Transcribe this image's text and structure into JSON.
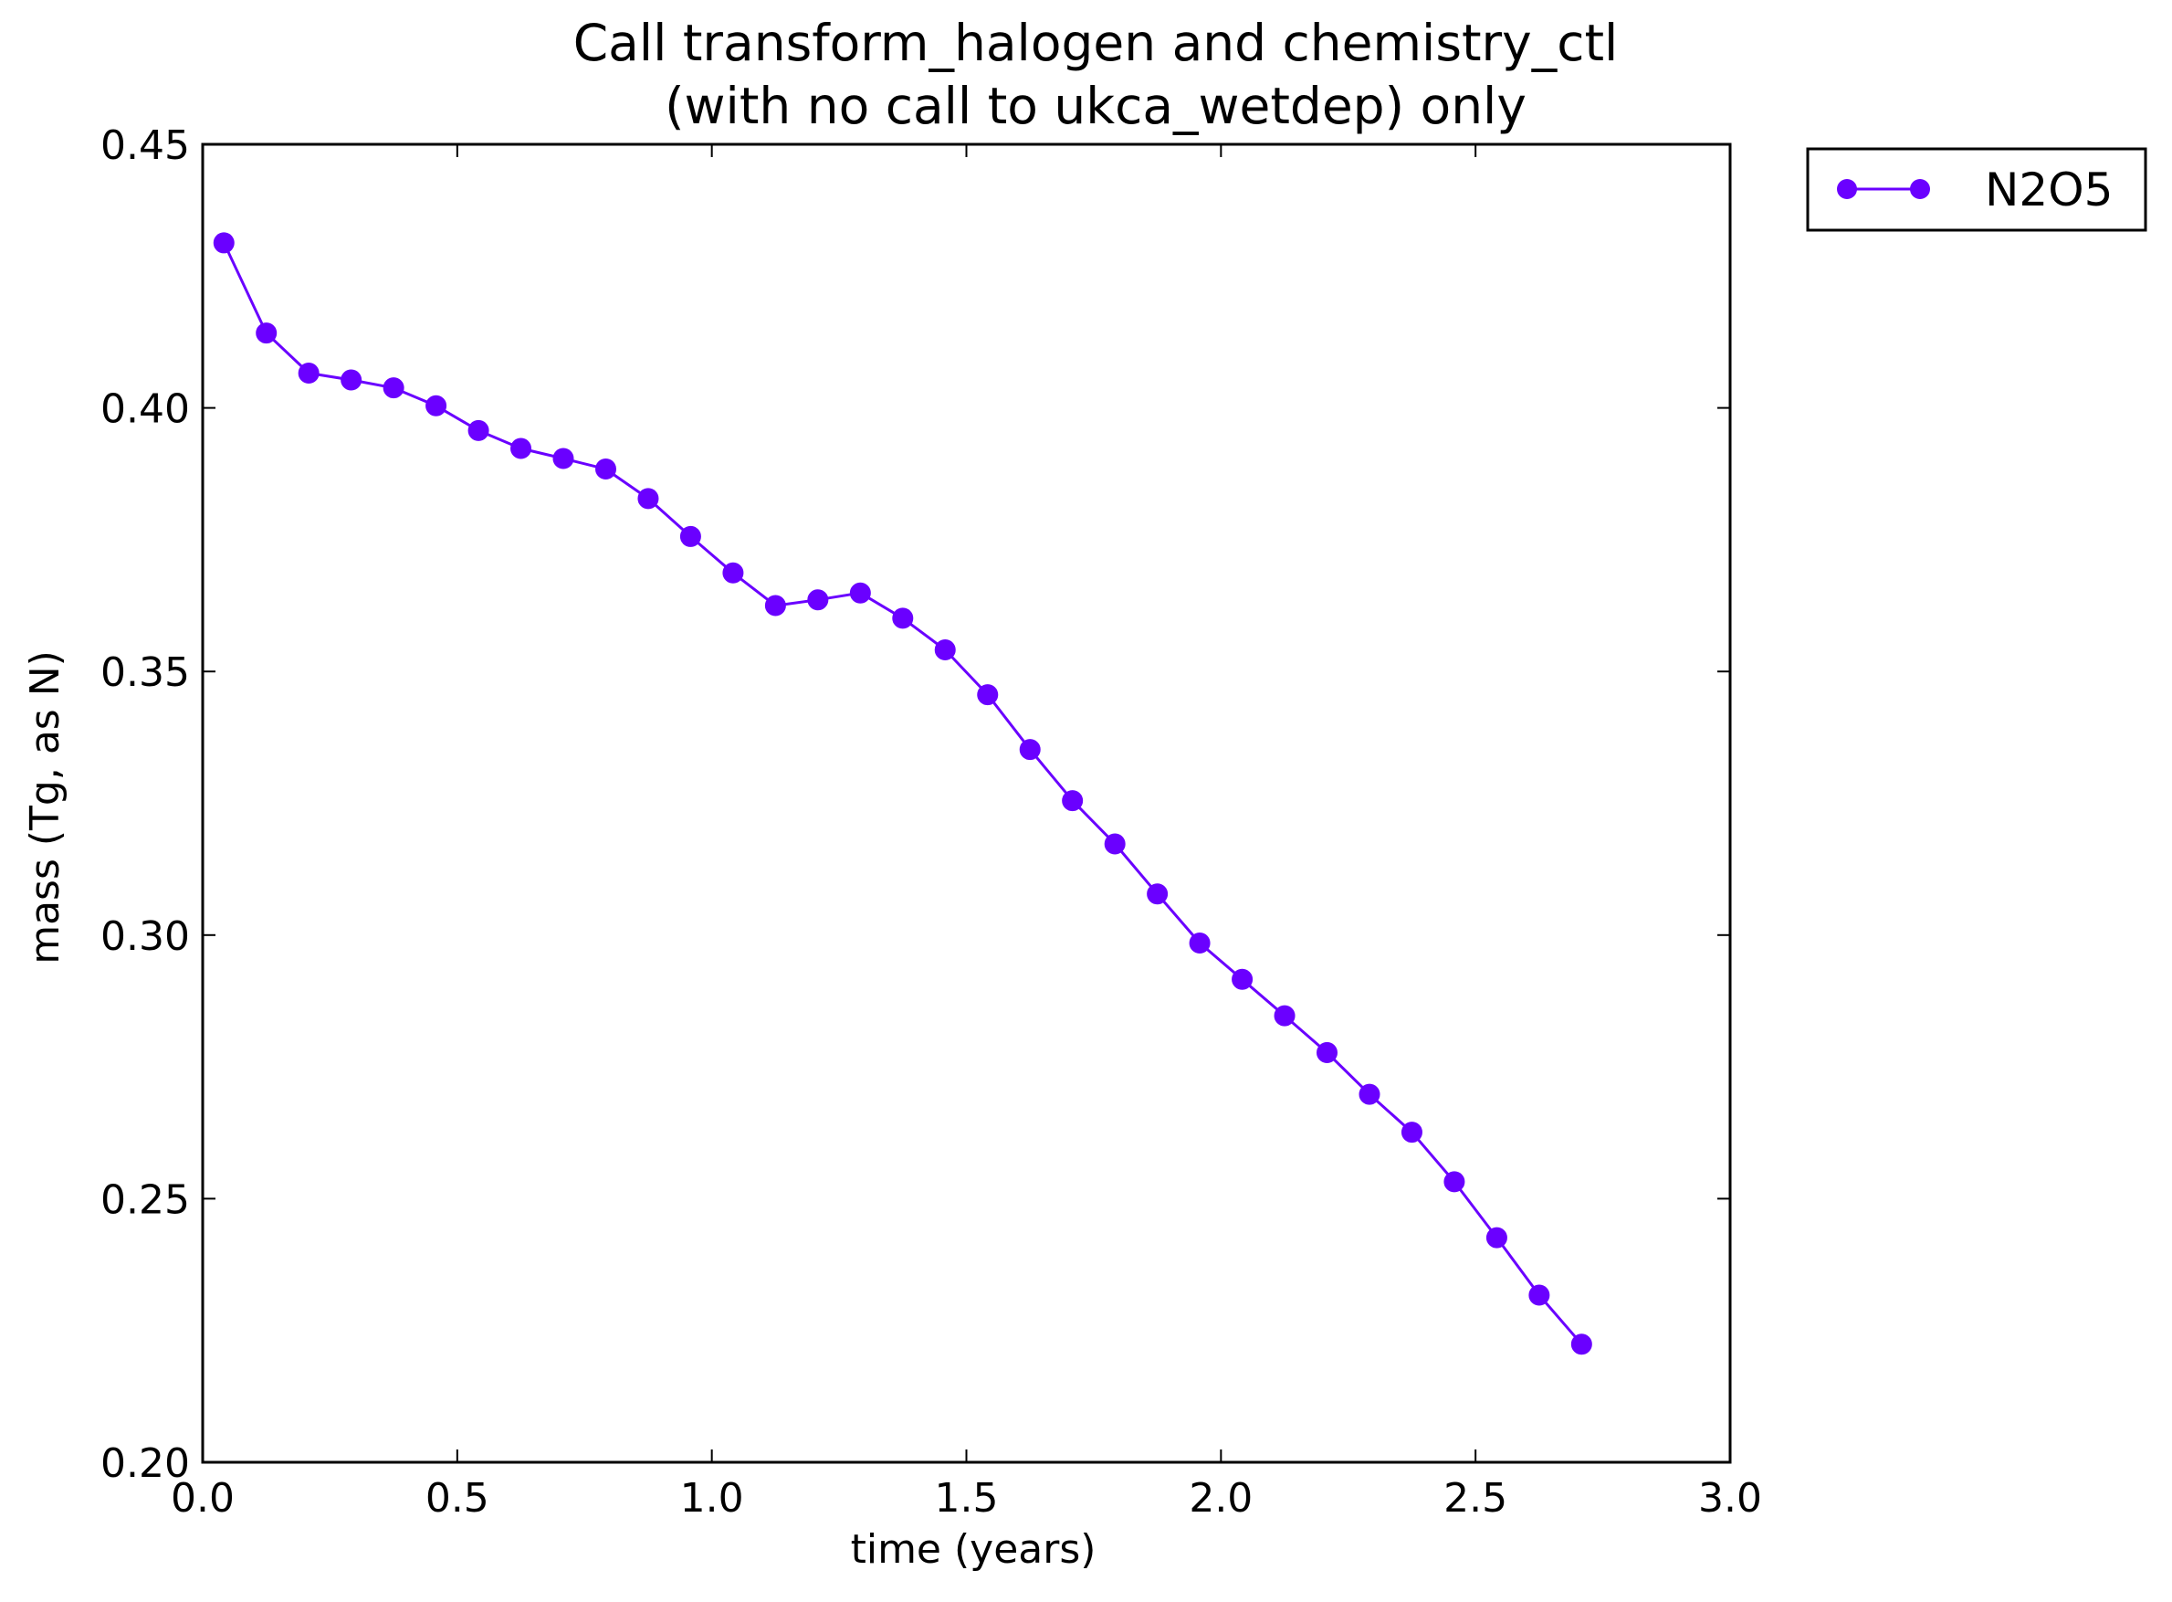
{
  "chart_data": {
    "type": "line",
    "title": "Call transform_halogen and chemistry_ctl\n(with no call to ukca_wetdep) only",
    "xlabel": "time (years)",
    "ylabel": "mass (Tg, as N)",
    "xlim": [
      0.0,
      3.0
    ],
    "ylim": [
      0.2,
      0.45
    ],
    "xticks": [
      "0.0",
      "0.5",
      "1.0",
      "1.5",
      "2.0",
      "2.5",
      "3.0"
    ],
    "yticks": [
      "0.20",
      "0.25",
      "0.30",
      "0.35",
      "0.40",
      "0.45"
    ],
    "grid": false,
    "legend_position": "outside-top-right",
    "series": [
      {
        "name": "N2O5",
        "color": "#6a00ff",
        "marker": "circle",
        "x": [
          0.0417,
          0.125,
          0.2083,
          0.2917,
          0.375,
          0.4583,
          0.5417,
          0.625,
          0.7083,
          0.7917,
          0.875,
          0.9583,
          1.0417,
          1.125,
          1.2083,
          1.2917,
          1.375,
          1.4583,
          1.5417,
          1.625,
          1.7083,
          1.7917,
          1.875,
          1.9583,
          2.0417,
          2.125,
          2.2083,
          2.2917,
          2.375,
          2.4583,
          2.5417,
          2.625,
          2.7083
        ],
        "y": [
          0.4313,
          0.4142,
          0.4066,
          0.4053,
          0.4038,
          0.4004,
          0.3957,
          0.3923,
          0.3904,
          0.3884,
          0.3828,
          0.3756,
          0.3687,
          0.3625,
          0.3636,
          0.3649,
          0.3601,
          0.3541,
          0.3456,
          0.3352,
          0.3255,
          0.3173,
          0.3078,
          0.2985,
          0.2916,
          0.2847,
          0.2777,
          0.2698,
          0.2626,
          0.2532,
          0.2426,
          0.2317,
          0.2224
        ]
      }
    ]
  }
}
